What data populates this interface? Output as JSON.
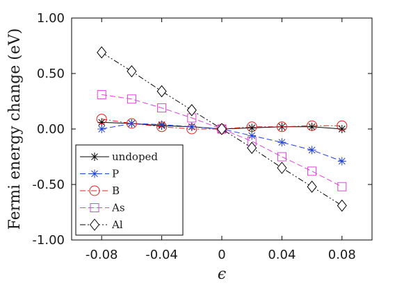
{
  "chart_data": {
    "type": "line",
    "xlabel": "ϵ",
    "ylabel": "Fermi energy change (eV)",
    "xlim": [
      -0.1,
      0.1
    ],
    "ylim": [
      -1.0,
      1.0
    ],
    "x_ticks": [
      -0.08,
      -0.04,
      0,
      0.04,
      0.08
    ],
    "x_tick_labels": [
      "-0.08",
      "-0.04",
      "0",
      "0.04",
      "0.08"
    ],
    "y_ticks": [
      1.0,
      0.5,
      0.0,
      -0.5,
      -1.0
    ],
    "y_tick_labels": [
      "1.00",
      "0.50",
      "0.00",
      "-0.50",
      "-1.00"
    ],
    "grid": false,
    "legend_position": "bottom-left",
    "x": [
      -0.08,
      -0.06,
      -0.04,
      -0.02,
      0,
      0.02,
      0.04,
      0.06,
      0.08
    ],
    "series": [
      {
        "name": "undoped",
        "color": "#000000",
        "marker": "star",
        "line": "solid",
        "values": [
          0.06,
          0.05,
          0.03,
          0.02,
          0.0,
          0.01,
          0.02,
          0.02,
          0.0
        ]
      },
      {
        "name": "P",
        "color": "#1f3fdc",
        "marker": "star",
        "line": "dashed",
        "values": [
          0.0,
          0.05,
          0.04,
          0.02,
          0.0,
          -0.06,
          -0.12,
          -0.19,
          -0.29
        ]
      },
      {
        "name": "B",
        "color": "#e0201b",
        "marker": "circle",
        "line": "dashdot",
        "values": [
          0.09,
          0.05,
          0.02,
          0.0,
          0.0,
          0.02,
          0.02,
          0.03,
          0.03
        ]
      },
      {
        "name": "As",
        "color": "#e040e0",
        "marker": "square",
        "line": "dashed",
        "values": [
          0.31,
          0.27,
          0.19,
          0.1,
          0.0,
          -0.11,
          -0.25,
          -0.38,
          -0.52
        ]
      },
      {
        "name": "Al",
        "color": "#000000",
        "marker": "diamond",
        "line": "dashdotdot",
        "values": [
          0.69,
          0.52,
          0.34,
          0.17,
          0.0,
          -0.17,
          -0.35,
          -0.52,
          -0.69
        ]
      }
    ]
  }
}
